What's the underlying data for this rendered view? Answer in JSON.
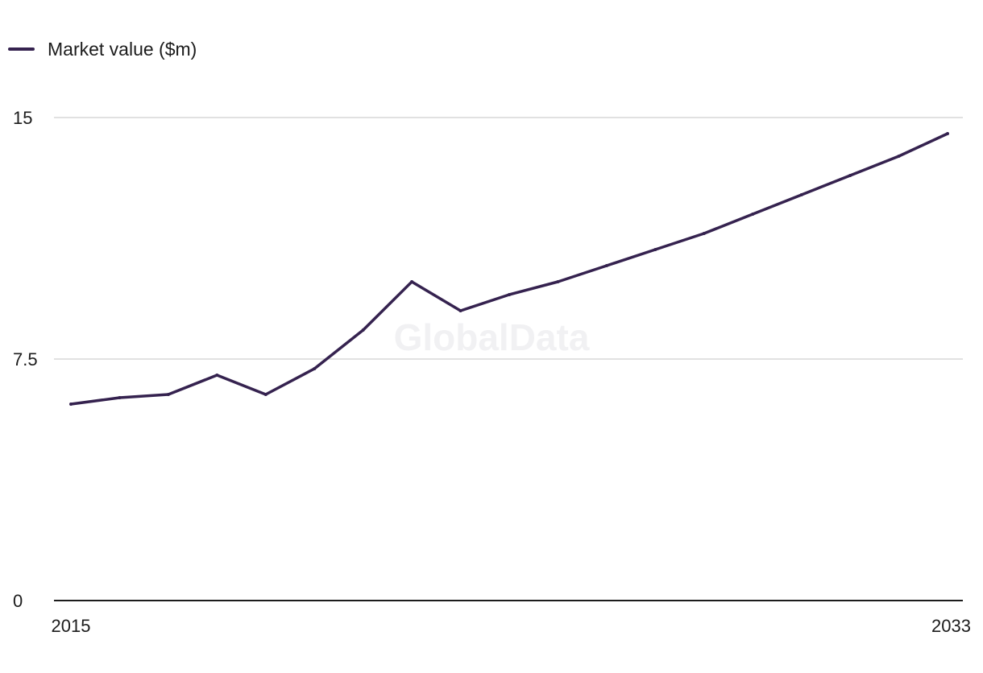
{
  "chart_data": {
    "type": "line",
    "title": "",
    "xlabel": "",
    "ylabel": "",
    "x": [
      2015,
      2016,
      2017,
      2018,
      2019,
      2020,
      2021,
      2022,
      2023,
      2024,
      2025,
      2026,
      2027,
      2028,
      2029,
      2030,
      2031,
      2032,
      2033
    ],
    "x_tick_labels": [
      "2015",
      "2033"
    ],
    "y_ticks": [
      0,
      7.5,
      15
    ],
    "y_tick_labels": [
      "0",
      "7.5",
      "15"
    ],
    "ylim": [
      0,
      15
    ],
    "grid": true,
    "legend_position": "top-left",
    "series": [
      {
        "name": "Market value ($m)",
        "color": "#35224f",
        "values": [
          6.1,
          6.3,
          6.4,
          7.0,
          6.4,
          7.2,
          8.4,
          9.9,
          9.0,
          9.5,
          9.9,
          10.4,
          10.9,
          11.4,
          12.0,
          12.6,
          13.2,
          13.8,
          14.5
        ]
      }
    ]
  },
  "watermark": "GlobalData"
}
